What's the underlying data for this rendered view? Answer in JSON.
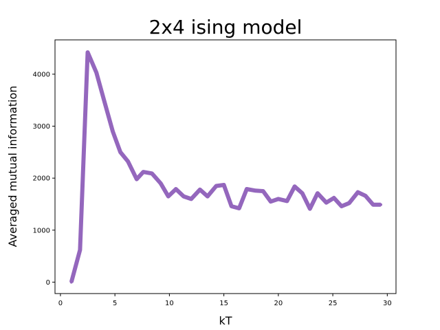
{
  "chart_data": {
    "type": "line",
    "title": "2x4 ising model",
    "xlabel": "kT",
    "ylabel": "Averaged mutual information",
    "xlim": [
      -0.5,
      30.8
    ],
    "ylim": [
      -220,
      4660
    ],
    "xticks": [
      0,
      5,
      10,
      15,
      20,
      25,
      30
    ],
    "yticks": [
      0,
      1000,
      2000,
      3000,
      4000
    ],
    "grid": false,
    "series": [
      {
        "color": "#9467bd",
        "x": [
          1.0,
          1.8,
          2.5,
          3.3,
          4.0,
          4.8,
          5.5,
          6.2,
          7.0,
          7.6,
          8.4,
          9.2,
          9.9,
          10.6,
          11.3,
          12.0,
          12.8,
          13.5,
          14.3,
          15.0,
          15.7,
          16.4,
          17.1,
          17.9,
          18.6,
          19.3,
          20.0,
          20.8,
          21.5,
          22.2,
          22.9,
          23.6,
          24.4,
          25.1,
          25.8,
          26.5,
          27.3,
          28.0,
          28.7,
          29.4
        ],
        "y": [
          0,
          620,
          4420,
          4030,
          3500,
          2900,
          2500,
          2320,
          1980,
          2120,
          2090,
          1900,
          1650,
          1790,
          1650,
          1600,
          1780,
          1650,
          1850,
          1870,
          1460,
          1420,
          1790,
          1760,
          1750,
          1550,
          1600,
          1560,
          1840,
          1710,
          1410,
          1710,
          1530,
          1620,
          1460,
          1520,
          1730,
          1660,
          1490,
          1490
        ]
      }
    ]
  }
}
